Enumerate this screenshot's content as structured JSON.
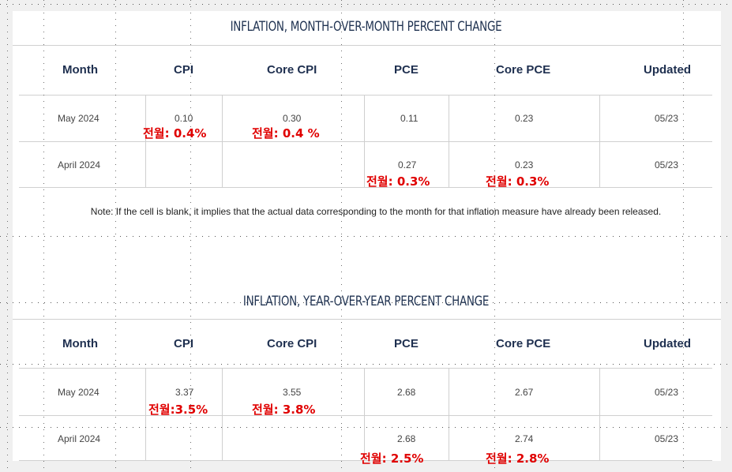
{
  "mom": {
    "title": "INFLATION, MONTH-OVER-MONTH PERCENT CHANGE",
    "headers": [
      "Month",
      "CPI",
      "Core CPI",
      "PCE",
      "Core PCE",
      "Updated"
    ],
    "rows": [
      {
        "month": "May 2024",
        "cpi": "0.10",
        "core_cpi": "0.30",
        "pce": "0.11",
        "core_pce": "0.23",
        "updated": "05/23"
      },
      {
        "month": "April 2024",
        "cpi": "",
        "core_cpi": "",
        "pce": "0.27",
        "core_pce": "0.23",
        "updated": "05/23"
      }
    ],
    "annotations": {
      "may_cpi": "전월: 0.4%",
      "may_core_cpi": "전월: 0.4 %",
      "april_pce": "전월: 0.3%",
      "april_core_pce": "전월: 0.3%"
    }
  },
  "note": "Note: If the cell is blank, it implies that the actual data corresponding to the month for that inflation measure have already been released.",
  "yoy": {
    "title": "INFLATION, YEAR-OVER-YEAR PERCENT CHANGE",
    "headers": [
      "Month",
      "CPI",
      "Core CPI",
      "PCE",
      "Core PCE",
      "Updated"
    ],
    "rows": [
      {
        "month": "May 2024",
        "cpi": "3.37",
        "core_cpi": "3.55",
        "pce": "2.68",
        "core_pce": "2.67",
        "updated": "05/23"
      },
      {
        "month": "April 2024",
        "cpi": "",
        "core_cpi": "",
        "pce": "2.68",
        "core_pce": "2.74",
        "updated": "05/23"
      }
    ],
    "annotations": {
      "may_cpi": "전월:3.5%",
      "may_core_cpi": "전월: 3.8%",
      "april_pce": "전월: 2.5%",
      "april_core_pce": "전월: 2.8%"
    }
  },
  "colors": {
    "header": "#1e2f4f",
    "annotation": "#e00000",
    "cell": "#444444"
  }
}
